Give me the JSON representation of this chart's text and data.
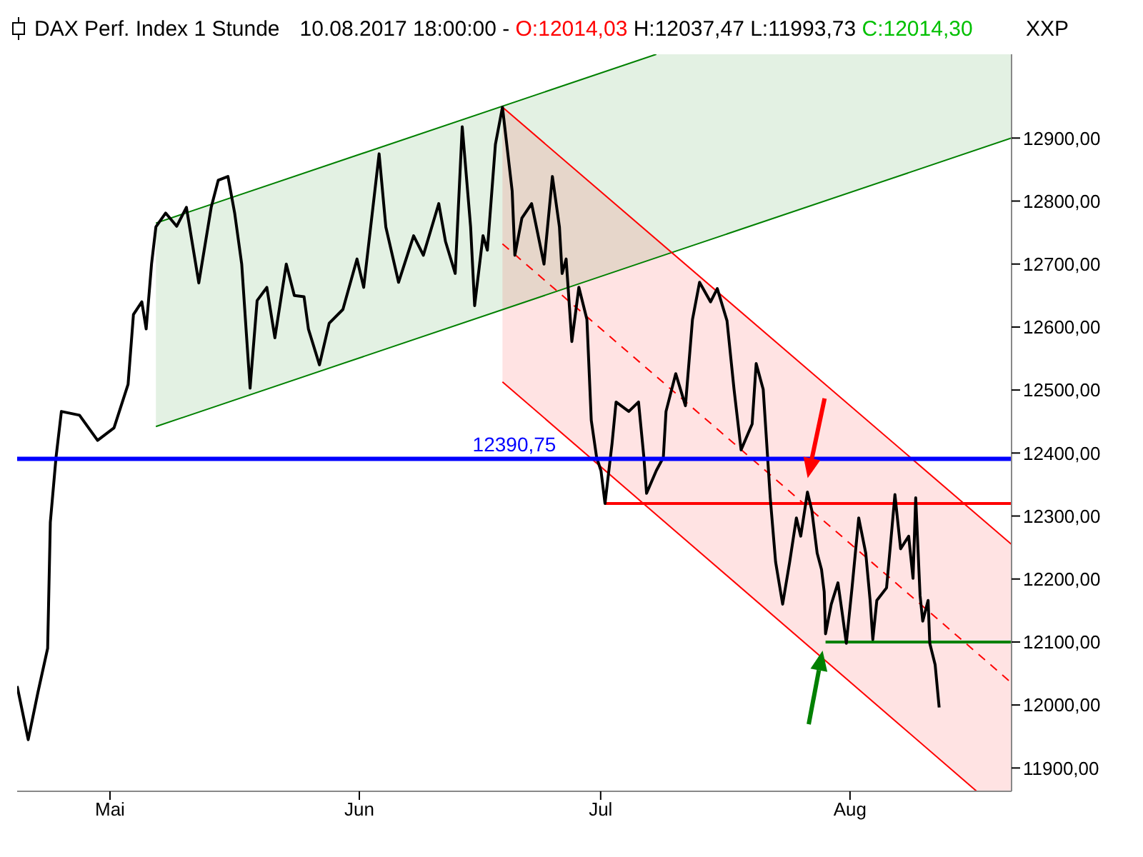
{
  "chart_data": {
    "type": "line",
    "title": "DAX Perf. Index 1 Stunde",
    "subtitle": "10.08.2017 18:00:00 - O:12014,03 H:12037,47 L:11993,73 C:12014,30",
    "annotations": [
      "XXP"
    ],
    "xlim": [
      "2017-04-19T11:00",
      "2017-08-21T02:00"
    ],
    "xticks": [
      {
        "value": "2017-05-01",
        "label": "Mai"
      },
      {
        "value": "2017-06-01",
        "label": "Jun"
      },
      {
        "value": "2017-07-01",
        "label": "Jul"
      },
      {
        "value": "2017-08-01",
        "label": "Aug"
      }
    ],
    "ylim": [
      11863,
      13033
    ],
    "yticks": [
      {
        "value": 11900,
        "label": "11900,00"
      },
      {
        "value": 12000,
        "label": "12000,00"
      },
      {
        "value": 12100,
        "label": "12100,00"
      },
      {
        "value": 12200,
        "label": "12200,00"
      },
      {
        "value": 12300,
        "label": "12300,00"
      },
      {
        "value": 12400,
        "label": "12400,00"
      },
      {
        "value": 12500,
        "label": "12500,00"
      },
      {
        "value": 12600,
        "label": "12600,00"
      },
      {
        "value": 12700,
        "label": "12700,00"
      },
      {
        "value": 12800,
        "label": "12800,00"
      },
      {
        "value": 12900,
        "label": "12900,00"
      }
    ],
    "grid": false,
    "legend": false,
    "marker": "none",
    "ref_lines": [
      {
        "axis": "y",
        "value": 12390.75,
        "label": "12390,75",
        "color": "#0000ff"
      }
    ],
    "series": [
      {
        "color": "#008000",
        "x": [
          "2017-05-06T17:00",
          "2017-07-07T22:00",
          "2017-08-21T02:00"
        ],
        "values": [
          12442,
          12710,
          12900
        ],
        "lower": [
          12442,
          12710,
          12900
        ],
        "upper": [
          12765,
          13033,
          13033
        ]
      },
      {
        "color": "#008000",
        "x": [
          "2017-05-06T17:00",
          "2017-07-07T22:00"
        ],
        "values": [
          12765,
          13033
        ]
      },
      {
        "color": "#ff0000",
        "line_style": "dashed",
        "x": [
          "2017-06-18T19:00",
          "2017-08-16T18:00",
          "2017-08-21T02:00"
        ],
        "values": [
          12732,
          12083,
          12035
        ],
        "lower": [
          12513,
          11863,
          11863
        ],
        "upper": [
          12949,
          12303,
          12255
        ]
      },
      {
        "color": "#ff0000",
        "x": [
          "2017-06-18T19:00",
          "2017-08-21T02:00"
        ],
        "values": [
          12949,
          12255
        ]
      },
      {
        "color": "#ff0000",
        "x": [
          "2017-06-18T19:00",
          "2017-08-16T18:00"
        ],
        "values": [
          12513,
          11863
        ]
      },
      {
        "color": "#ff0000",
        "x": [
          "2017-07-01T13:00",
          "2017-08-21T02:00"
        ],
        "values": [
          12320,
          12320
        ]
      },
      {
        "color": "#008000",
        "x": [
          "2017-07-28T23:00",
          "2017-08-21T02:00"
        ],
        "values": [
          12100,
          12100
        ]
      },
      {
        "color": "#000000",
        "x": [
          "2017-04-19T11:00",
          "2017-04-20T20:00",
          "2017-04-22T01:00",
          "2017-04-23T06:00",
          "2017-04-23T14:00",
          "2017-04-24T07:00",
          "2017-04-24T23:00",
          "2017-04-27T05:00",
          "2017-04-29T11:00",
          "2017-05-01T12:00",
          "2017-05-03T06:00",
          "2017-05-03T22:00",
          "2017-05-04T23:00",
          "2017-05-05T12:00",
          "2017-05-06T04:00",
          "2017-05-06T17:00",
          "2017-05-07T22:00",
          "2017-05-09T07:00",
          "2017-05-10T12:00",
          "2017-05-12T01:00",
          "2017-05-13T14:00",
          "2017-05-14T11:00",
          "2017-05-15T16:00",
          "2017-05-16T12:00",
          "2017-05-17T09:00",
          "2017-05-17T22:00",
          "2017-05-18T10:00",
          "2017-05-19T07:00",
          "2017-05-20T12:00",
          "2017-05-21T12:00",
          "2017-05-22T22:00",
          "2017-05-23T22:00",
          "2017-05-25T03:00",
          "2017-05-25T16:00",
          "2017-05-27T01:00",
          "2017-05-28T06:00",
          "2017-05-29T23:00",
          "2017-05-31T17:00",
          "2017-06-01T13:00",
          "2017-06-03T11:00",
          "2017-06-04T07:00",
          "2017-06-05T21:00",
          "2017-06-07T18:00",
          "2017-06-08T23:00",
          "2017-06-10T21:00",
          "2017-06-11T17:00",
          "2017-06-12T22:00",
          "2017-06-13T19:00",
          "2017-06-14T20:00",
          "2017-06-15T08:00",
          "2017-06-16T09:00",
          "2017-06-16T22:00",
          "2017-06-17T22:00",
          "2017-06-18T19:00",
          "2017-06-20T00:00",
          "2017-06-20T08:00",
          "2017-06-21T05:00",
          "2017-06-22T10:00",
          "2017-06-23T23:00",
          "2017-06-25T00:00",
          "2017-06-25T21:00",
          "2017-06-26T05:00",
          "2017-06-26T17:00",
          "2017-06-27T10:00",
          "2017-06-28T07:00",
          "2017-06-29T07:00",
          "2017-06-29T20:00",
          "2017-06-30T12:00",
          "2017-07-01T01:00",
          "2017-07-01T13:00",
          "2017-07-02T10:00",
          "2017-07-02T22:00",
          "2017-07-04T12:00",
          "2017-07-05T17:00",
          "2017-07-06T09:00",
          "2017-07-06T17:00",
          "2017-07-07T22:00",
          "2017-07-08T19:00",
          "2017-07-09T03:00",
          "2017-07-10T08:00",
          "2017-07-11T13:00",
          "2017-07-12T10:00",
          "2017-07-13T07:00",
          "2017-07-14T16:00",
          "2017-07-15T12:00",
          "2017-07-16T17:00",
          "2017-07-17T14:00",
          "2017-07-18T11:00",
          "2017-07-19T20:00",
          "2017-07-20T08:00",
          "2017-07-21T05:00",
          "2017-07-22T02:00",
          "2017-07-22T18:00",
          "2017-07-23T15:00",
          "2017-07-24T12:00",
          "2017-07-25T08:00",
          "2017-07-25T21:00",
          "2017-07-26T17:00",
          "2017-07-27T06:00",
          "2017-07-27T22:00",
          "2017-07-28T11:00",
          "2017-07-28T19:00",
          "2017-07-28T23:00",
          "2017-07-29T16:00",
          "2017-07-30T12:00",
          "2017-07-31T01:00",
          "2017-07-31T13:00",
          "2017-08-01T06:00",
          "2017-08-02T02:00",
          "2017-08-02T23:00",
          "2017-08-03T12:00",
          "2017-08-03T20:00",
          "2017-08-04T08:00",
          "2017-08-05T13:00",
          "2017-08-06T02:00",
          "2017-08-06T14:00",
          "2017-08-07T07:00",
          "2017-08-08T07:00",
          "2017-08-08T20:00",
          "2017-08-09T04:00",
          "2017-08-09T17:00",
          "2017-08-10T01:00",
          "2017-08-10T17:00",
          "2017-08-10T22:00",
          "2017-08-11T14:00",
          "2017-08-12T02:00"
        ],
        "values": [
          12030,
          11945,
          12020,
          12090,
          12290,
          12393,
          12466,
          12460,
          12420,
          12440,
          12509,
          12620,
          12640,
          12597,
          12700,
          12759,
          12781,
          12760,
          12790,
          12670,
          12790,
          12833,
          12839,
          12781,
          12700,
          12597,
          12503,
          12642,
          12663,
          12583,
          12700,
          12650,
          12648,
          12597,
          12540,
          12606,
          12628,
          12708,
          12663,
          12875,
          12759,
          12671,
          12745,
          12714,
          12796,
          12736,
          12685,
          12918,
          12759,
          12634,
          12745,
          12722,
          12890,
          12949,
          12816,
          12714,
          12773,
          12796,
          12700,
          12839,
          12759,
          12685,
          12708,
          12577,
          12663,
          12612,
          12452,
          12393,
          12372,
          12320,
          12415,
          12481,
          12466,
          12481,
          12393,
          12336,
          12372,
          12393,
          12466,
          12526,
          12475,
          12612,
          12671,
          12640,
          12661,
          12610,
          12501,
          12405,
          12446,
          12542,
          12501,
          12329,
          12227,
          12160,
          12227,
          12297,
          12268,
          12338,
          12309,
          12241,
          12215,
          12180,
          12113,
          12160,
          12194,
          12145,
          12098,
          12186,
          12297,
          12241,
          12166,
          12104,
          12166,
          12186,
          12262,
          12334,
          12248,
          12268,
          12201,
          12329,
          12174,
          12133,
          12166,
          12098,
          12064,
          11996
        ]
      }
    ]
  }
}
